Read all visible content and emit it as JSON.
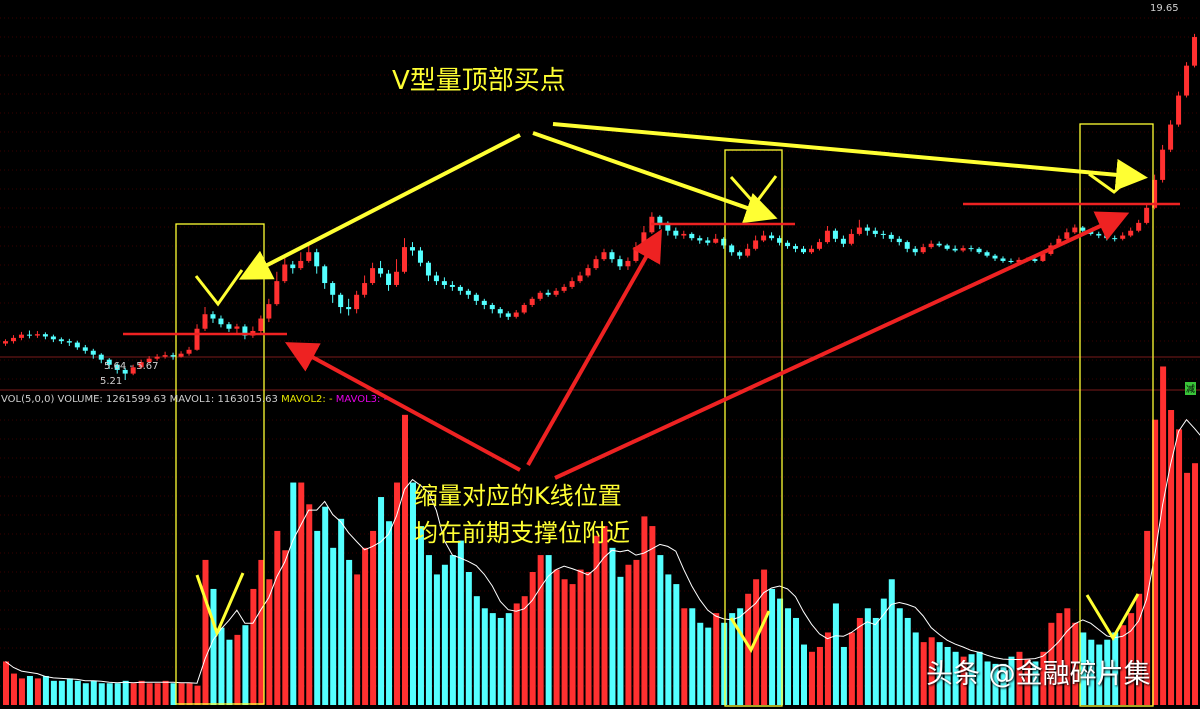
{
  "annotations": {
    "title": "V型量顶部买点",
    "note_line1": "缩量对应的K线位置",
    "note_line2": "均在前期支撑位附近"
  },
  "volume_legend": {
    "name": "VOL(5,0,0)",
    "volume": "VOLUME: 1261599.63",
    "mavol1": "MAVOL1: 1163015.63",
    "mavol2": "MAVOL2: -",
    "mavol3": "MAVOL3: -"
  },
  "price_labels": {
    "high": "19.65",
    "low": "5.21",
    "range": "5.64 - 5.67"
  },
  "watermark": "头条 @金融碎片集",
  "tag": "减",
  "colors": {
    "up": "#ff3030",
    "down": "#54ffff",
    "annotation_yellow": "#ffff33",
    "annotation_red": "#ee2222",
    "ma_line": "#ffffff"
  },
  "chart_data": {
    "type": "candlestick+bar",
    "price_axis": {
      "min": 5.21,
      "max": 19.65
    },
    "volume_unit": "relative",
    "candles": [
      [
        5.93,
        5.98,
        6.02,
        5.88
      ],
      [
        5.98,
        6.05,
        6.11,
        5.93
      ],
      [
        6.05,
        6.12,
        6.18,
        6.0
      ],
      [
        6.12,
        6.1,
        6.21,
        6.04
      ],
      [
        6.1,
        6.13,
        6.2,
        6.05
      ],
      [
        6.13,
        6.08,
        6.17,
        6.02
      ],
      [
        6.08,
        6.02,
        6.12,
        5.96
      ],
      [
        6.02,
        5.98,
        6.06,
        5.92
      ],
      [
        5.98,
        5.95,
        6.03,
        5.88
      ],
      [
        5.95,
        5.85,
        5.99,
        5.8
      ],
      [
        5.85,
        5.78,
        5.9,
        5.72
      ],
      [
        5.78,
        5.7,
        5.82,
        5.62
      ],
      [
        5.7,
        5.6,
        5.73,
        5.53
      ],
      [
        5.6,
        5.5,
        5.63,
        5.42
      ],
      [
        5.5,
        5.4,
        5.53,
        5.33
      ],
      [
        5.4,
        5.33,
        5.44,
        5.21
      ],
      [
        5.33,
        5.45,
        5.5,
        5.3
      ],
      [
        5.45,
        5.55,
        5.6,
        5.42
      ],
      [
        5.55,
        5.62,
        5.67,
        5.52
      ],
      [
        5.62,
        5.66,
        5.71,
        5.58
      ],
      [
        5.66,
        5.69,
        5.76,
        5.62
      ],
      [
        5.69,
        5.66,
        5.74,
        5.6
      ],
      [
        5.66,
        5.72,
        5.77,
        5.64
      ],
      [
        5.72,
        5.8,
        5.86,
        5.68
      ],
      [
        5.8,
        6.25,
        6.35,
        5.78
      ],
      [
        6.25,
        6.58,
        6.75,
        6.2
      ],
      [
        6.58,
        6.48,
        6.65,
        6.38
      ],
      [
        6.48,
        6.35,
        6.55,
        6.28
      ],
      [
        6.35,
        6.25,
        6.4,
        6.18
      ],
      [
        6.25,
        6.3,
        6.36,
        6.15
      ],
      [
        6.3,
        6.1,
        6.35,
        6.02
      ],
      [
        6.1,
        6.2,
        6.3,
        6.05
      ],
      [
        6.2,
        6.48,
        6.55,
        6.15
      ],
      [
        6.48,
        6.82,
        6.95,
        6.4
      ],
      [
        6.82,
        7.4,
        7.65,
        6.78
      ],
      [
        7.4,
        7.85,
        8.1,
        7.35
      ],
      [
        7.85,
        7.75,
        7.95,
        7.6
      ],
      [
        7.75,
        7.95,
        8.2,
        7.7
      ],
      [
        7.95,
        8.2,
        8.45,
        7.9
      ],
      [
        8.2,
        7.8,
        8.3,
        7.6
      ],
      [
        7.8,
        7.35,
        7.85,
        7.2
      ],
      [
        7.35,
        7.05,
        7.4,
        6.85
      ],
      [
        7.05,
        6.75,
        7.1,
        6.6
      ],
      [
        6.75,
        6.7,
        6.95,
        6.55
      ],
      [
        6.7,
        7.05,
        7.15,
        6.6
      ],
      [
        7.05,
        7.35,
        7.55,
        6.98
      ],
      [
        7.35,
        7.75,
        7.9,
        7.3
      ],
      [
        7.75,
        7.6,
        7.95,
        7.5
      ],
      [
        7.6,
        7.3,
        7.7,
        7.15
      ],
      [
        7.3,
        7.65,
        8.0,
        7.25
      ],
      [
        7.65,
        8.35,
        8.62,
        7.6
      ],
      [
        8.35,
        8.25,
        8.5,
        8.1
      ],
      [
        8.25,
        7.9,
        8.35,
        7.8
      ],
      [
        7.9,
        7.55,
        7.95,
        7.4
      ],
      [
        7.55,
        7.4,
        7.65,
        7.3
      ],
      [
        7.4,
        7.3,
        7.5,
        7.2
      ],
      [
        7.3,
        7.25,
        7.4,
        7.15
      ],
      [
        7.25,
        7.15,
        7.3,
        7.05
      ],
      [
        7.15,
        7.05,
        7.2,
        6.95
      ],
      [
        7.05,
        6.9,
        7.1,
        6.8
      ],
      [
        6.9,
        6.8,
        6.95,
        6.7
      ],
      [
        6.8,
        6.7,
        6.85,
        6.6
      ],
      [
        6.7,
        6.6,
        6.75,
        6.5
      ],
      [
        6.6,
        6.52,
        6.65,
        6.45
      ],
      [
        6.52,
        6.62,
        6.68,
        6.48
      ],
      [
        6.62,
        6.8,
        6.85,
        6.58
      ],
      [
        6.8,
        6.95,
        7.0,
        6.75
      ],
      [
        6.95,
        7.1,
        7.15,
        6.9
      ],
      [
        7.1,
        7.05,
        7.18,
        7.0
      ],
      [
        7.05,
        7.15,
        7.22,
        7.0
      ],
      [
        7.15,
        7.25,
        7.32,
        7.1
      ],
      [
        7.25,
        7.4,
        7.5,
        7.2
      ],
      [
        7.4,
        7.55,
        7.65,
        7.35
      ],
      [
        7.55,
        7.75,
        7.85,
        7.5
      ],
      [
        7.75,
        8.0,
        8.1,
        7.7
      ],
      [
        8.0,
        8.2,
        8.3,
        7.95
      ],
      [
        8.2,
        8.0,
        8.28,
        7.9
      ],
      [
        8.0,
        7.8,
        8.1,
        7.7
      ],
      [
        7.8,
        7.95,
        8.05,
        7.7
      ],
      [
        7.95,
        8.35,
        8.5,
        7.9
      ],
      [
        8.35,
        8.8,
        9.0,
        8.3
      ],
      [
        8.8,
        9.3,
        9.45,
        8.75
      ],
      [
        9.3,
        9.1,
        9.35,
        8.9
      ],
      [
        9.1,
        8.85,
        9.15,
        8.7
      ],
      [
        8.85,
        8.7,
        8.95,
        8.6
      ],
      [
        8.7,
        8.75,
        8.85,
        8.6
      ],
      [
        8.75,
        8.62,
        8.8,
        8.55
      ],
      [
        8.62,
        8.55,
        8.7,
        8.45
      ],
      [
        8.55,
        8.48,
        8.65,
        8.4
      ],
      [
        8.48,
        8.6,
        8.75,
        8.45
      ],
      [
        8.6,
        8.4,
        8.65,
        8.3
      ],
      [
        8.4,
        8.2,
        8.45,
        8.1
      ],
      [
        8.2,
        8.1,
        8.25,
        8.0
      ],
      [
        8.1,
        8.3,
        8.45,
        8.05
      ],
      [
        8.3,
        8.55,
        8.7,
        8.25
      ],
      [
        8.55,
        8.7,
        8.85,
        8.5
      ],
      [
        8.7,
        8.62,
        8.8,
        8.55
      ],
      [
        8.62,
        8.48,
        8.7,
        8.4
      ],
      [
        8.48,
        8.38,
        8.55,
        8.3
      ],
      [
        8.38,
        8.3,
        8.45,
        8.2
      ],
      [
        8.3,
        8.2,
        8.38,
        8.15
      ],
      [
        8.2,
        8.3,
        8.4,
        8.15
      ],
      [
        8.3,
        8.5,
        8.6,
        8.25
      ],
      [
        8.5,
        8.85,
        9.0,
        8.45
      ],
      [
        8.85,
        8.6,
        8.92,
        8.5
      ],
      [
        8.6,
        8.45,
        8.7,
        8.35
      ],
      [
        8.45,
        8.75,
        8.9,
        8.4
      ],
      [
        8.75,
        8.95,
        9.2,
        8.7
      ],
      [
        8.95,
        8.85,
        9.05,
        8.7
      ],
      [
        8.85,
        8.75,
        8.95,
        8.65
      ],
      [
        8.75,
        8.72,
        8.85,
        8.6
      ],
      [
        8.72,
        8.6,
        8.8,
        8.5
      ],
      [
        8.6,
        8.5,
        8.68,
        8.4
      ],
      [
        8.5,
        8.3,
        8.55,
        8.2
      ],
      [
        8.3,
        8.2,
        8.38,
        8.1
      ],
      [
        8.2,
        8.35,
        8.45,
        8.15
      ],
      [
        8.35,
        8.45,
        8.55,
        8.3
      ],
      [
        8.45,
        8.4,
        8.52,
        8.35
      ],
      [
        8.4,
        8.3,
        8.45,
        8.25
      ],
      [
        8.3,
        8.25,
        8.4,
        8.2
      ],
      [
        8.25,
        8.32,
        8.4,
        8.2
      ],
      [
        8.32,
        8.3,
        8.4,
        8.22
      ],
      [
        8.3,
        8.2,
        8.35,
        8.15
      ],
      [
        8.2,
        8.1,
        8.25,
        8.05
      ],
      [
        8.1,
        8.02,
        8.15,
        7.95
      ],
      [
        8.02,
        7.95,
        8.08,
        7.9
      ],
      [
        7.95,
        7.92,
        8.02,
        7.88
      ],
      [
        7.92,
        7.98,
        8.05,
        7.9
      ],
      [
        7.98,
        8.0,
        8.05,
        7.92
      ],
      [
        8.0,
        7.95,
        8.04,
        7.9
      ],
      [
        7.95,
        8.15,
        8.22,
        7.92
      ],
      [
        8.15,
        8.4,
        8.48,
        8.1
      ],
      [
        8.4,
        8.6,
        8.7,
        8.35
      ],
      [
        8.6,
        8.8,
        8.92,
        8.55
      ],
      [
        8.8,
        8.95,
        9.05,
        8.75
      ],
      [
        8.95,
        8.85,
        9.0,
        8.78
      ],
      [
        8.85,
        8.75,
        8.92,
        8.7
      ],
      [
        8.75,
        8.7,
        8.82,
        8.62
      ],
      [
        8.7,
        8.62,
        8.78,
        8.55
      ],
      [
        8.62,
        8.6,
        8.7,
        8.52
      ],
      [
        8.6,
        8.7,
        8.8,
        8.55
      ],
      [
        8.7,
        8.85,
        8.95,
        8.65
      ],
      [
        8.85,
        9.1,
        9.2,
        8.8
      ],
      [
        9.1,
        9.6,
        9.75,
        9.05
      ],
      [
        9.6,
        10.6,
        10.8,
        9.55
      ],
      [
        10.6,
        11.8,
        12.0,
        10.5
      ],
      [
        11.8,
        12.9,
        13.1,
        11.7
      ],
      [
        12.9,
        14.3,
        14.5,
        12.8
      ],
      [
        14.3,
        15.9,
        16.1,
        14.2
      ],
      [
        15.9,
        17.6,
        17.8,
        15.8
      ],
      [
        17.6,
        19.3,
        19.65,
        17.5
      ]
    ],
    "volume_heights_px": "not-used",
    "volumes": [
      0.18,
      0.13,
      0.11,
      0.12,
      0.11,
      0.12,
      0.1,
      0.1,
      0.11,
      0.1,
      0.09,
      0.1,
      0.09,
      0.09,
      0.09,
      0.1,
      0.09,
      0.1,
      0.09,
      0.09,
      0.1,
      0.09,
      0.09,
      0.09,
      0.08,
      0.6,
      0.48,
      0.32,
      0.27,
      0.29,
      0.33,
      0.48,
      0.6,
      0.52,
      0.72,
      0.64,
      0.92,
      0.92,
      0.83,
      0.72,
      0.82,
      0.65,
      0.77,
      0.6,
      0.54,
      0.65,
      0.72,
      0.86,
      0.76,
      0.92,
      1.2,
      0.92,
      0.74,
      0.62,
      0.54,
      0.58,
      0.62,
      0.68,
      0.55,
      0.45,
      0.4,
      0.38,
      0.36,
      0.38,
      0.42,
      0.45,
      0.55,
      0.62,
      0.62,
      0.56,
      0.52,
      0.5,
      0.56,
      0.55,
      0.7,
      0.74,
      0.65,
      0.53,
      0.58,
      0.6,
      0.78,
      0.74,
      0.62,
      0.54,
      0.5,
      0.4,
      0.4,
      0.34,
      0.32,
      0.38,
      0.34,
      0.38,
      0.4,
      0.46,
      0.52,
      0.56,
      0.48,
      0.44,
      0.4,
      0.36,
      0.25,
      0.22,
      0.24,
      0.3,
      0.42,
      0.24,
      0.3,
      0.36,
      0.4,
      0.36,
      0.44,
      0.52,
      0.4,
      0.36,
      0.3,
      0.26,
      0.28,
      0.26,
      0.24,
      0.22,
      0.2,
      0.21,
      0.22,
      0.18,
      0.17,
      0.17,
      0.2,
      0.22,
      0.19,
      0.18,
      0.22,
      0.34,
      0.38,
      0.4,
      0.34,
      0.3,
      0.27,
      0.25,
      0.27,
      0.3,
      0.33,
      0.38,
      0.46,
      0.72,
      1.18,
      1.4,
      1.22,
      1.14,
      0.96,
      1.0,
      1.2
    ]
  }
}
